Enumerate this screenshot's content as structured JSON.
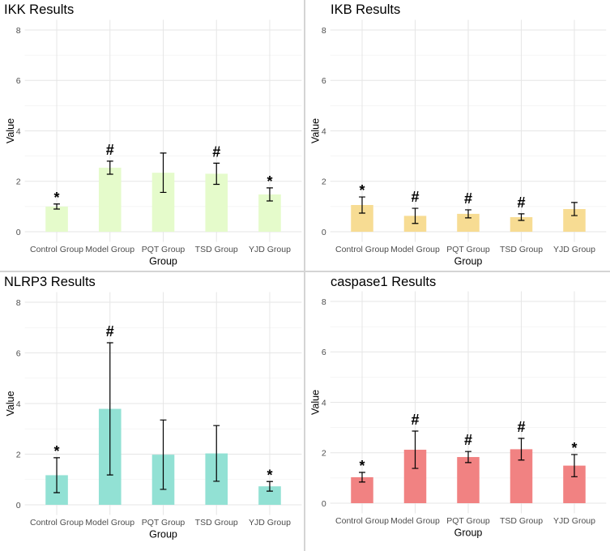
{
  "chart_data": [
    {
      "type": "bar",
      "title": "IKK Results",
      "xlabel": "Group",
      "ylabel": "Value",
      "categories": [
        "Control Group",
        "Model Group",
        "PQT Group",
        "TSD Group",
        "YJD Group"
      ],
      "values": [
        1.0,
        2.54,
        2.34,
        2.3,
        1.48
      ],
      "error": [
        0.1,
        0.26,
        0.78,
        0.42,
        0.26
      ],
      "annotations": [
        "*",
        "#",
        null,
        "#",
        "*"
      ],
      "ylim": [
        0,
        8
      ],
      "yticks": [
        0,
        2,
        4,
        6,
        8
      ],
      "grid": true,
      "bar_color": "#e5fbcb"
    },
    {
      "type": "bar",
      "title": "IKB Results",
      "xlabel": "Group",
      "ylabel": "Value",
      "categories": [
        "Control Group",
        "Model Group",
        "PQT Group",
        "TSD Group",
        "YJD Group"
      ],
      "values": [
        1.06,
        0.63,
        0.71,
        0.58,
        0.9
      ],
      "error": [
        0.32,
        0.3,
        0.16,
        0.13,
        0.26
      ],
      "annotations": [
        "*",
        "#",
        "#",
        "#",
        null
      ],
      "ylim": [
        0,
        8
      ],
      "yticks": [
        0,
        2,
        4,
        6,
        8
      ],
      "grid": true,
      "bar_color": "#f7dc93"
    },
    {
      "type": "bar",
      "title": "NLRP3 Results",
      "xlabel": "Group",
      "ylabel": "Value",
      "categories": [
        "Control Group",
        "Model Group",
        "PQT Group",
        "TSD Group",
        "YJD Group"
      ],
      "values": [
        1.17,
        3.79,
        1.98,
        2.03,
        0.73
      ],
      "error": [
        0.69,
        2.61,
        1.37,
        1.1,
        0.19
      ],
      "annotations": [
        "*",
        "#",
        null,
        null,
        "*"
      ],
      "ylim": [
        0,
        8
      ],
      "yticks": [
        0,
        2,
        4,
        6,
        8
      ],
      "grid": true,
      "bar_color": "#92e1d4"
    },
    {
      "type": "bar",
      "title": "caspase1 Results",
      "xlabel": "Group",
      "ylabel": "Value",
      "categories": [
        "Control Group",
        "Model Group",
        "PQT Group",
        "TSD Group",
        "YJD Group"
      ],
      "values": [
        1.03,
        2.12,
        1.83,
        2.14,
        1.49
      ],
      "error": [
        0.19,
        0.74,
        0.22,
        0.43,
        0.44
      ],
      "annotations": [
        "*",
        "#",
        "#",
        "#",
        "*"
      ],
      "ylim": [
        0,
        8
      ],
      "yticks": [
        0,
        2,
        4,
        6,
        8
      ],
      "grid": true,
      "bar_color": "#f18282"
    }
  ]
}
